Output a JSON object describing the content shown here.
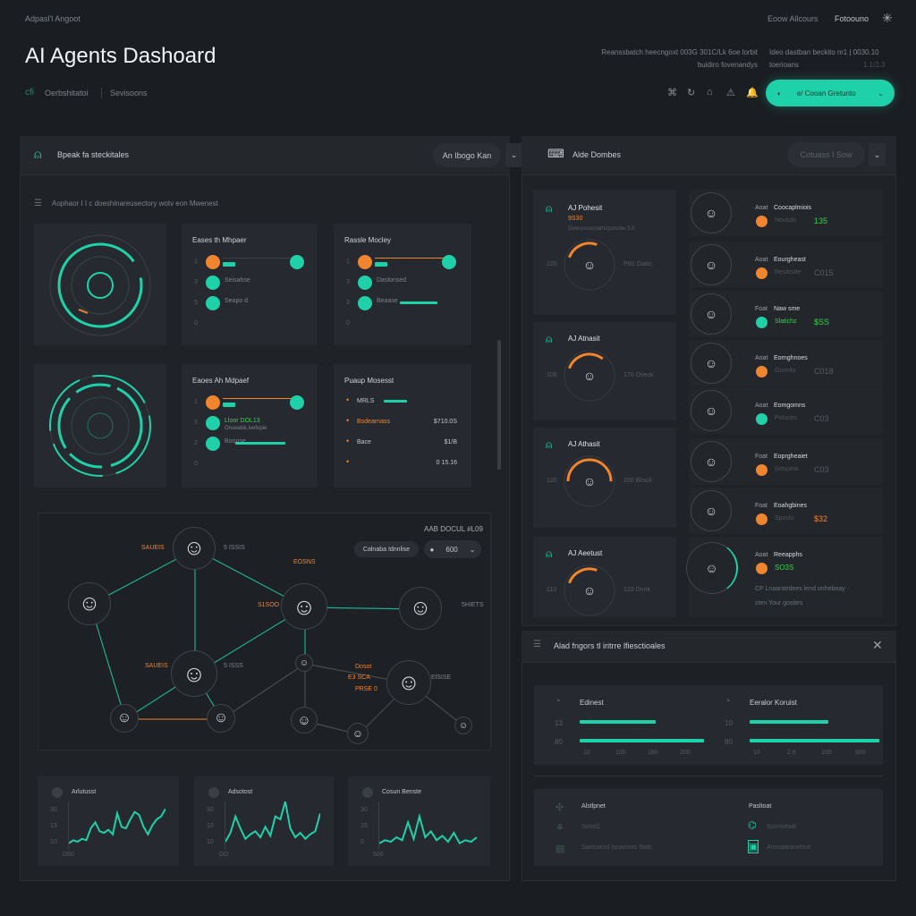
{
  "colors": {
    "accent": "#1fd1a8",
    "warning": "#f0852d",
    "background": "#1a1d22",
    "success": "#3ccf4e"
  },
  "topbar": {
    "breadcrumb": "Adpasl'l Angoot",
    "links": [
      "Eoow Allcours",
      "Fotoouno"
    ],
    "settings_icon": "asterisk-icon"
  },
  "header": {
    "title": "AI Agents Dashoard",
    "subtitle_left_1": "Reanssbatch heecngoxt 003G 301C/Lk 6oe lorbit",
    "subtitle_left_2": "buidiro fovenandys",
    "subtitle_right_1": "Ideo dastban beckito m1 | 0030.10",
    "subtitle_right_2": "toerioans",
    "subtitle_right_3": "1.1/2.3",
    "nav": [
      {
        "icon": "cfi",
        "label": "Oerbshitatoi"
      },
      {
        "label": "Sevisoons"
      }
    ],
    "tool_icons": [
      "network-icon",
      "refresh-icon",
      "home-icon",
      "alert-icon",
      "bell-icon"
    ],
    "primary_button": "e/ Cooan Gretunto"
  },
  "left_panel": {
    "title": "Bpeak fa steckitales",
    "button": "An Ibogo Kan",
    "caption": "Aophaor I I c doeshinareusectory wotv eon Mwenest",
    "cards": [
      {
        "title": "Eases th Mhpaer",
        "rows": [
          {
            "n": "1",
            "label": ""
          },
          {
            "n": "3",
            "label": "Seisahse"
          },
          {
            "n": "5",
            "label": "Seapo d"
          },
          {
            "n": "0",
            "label": ""
          }
        ]
      },
      {
        "title": "Rassle Mocley",
        "rows": [
          {
            "n": "1",
            "label": ""
          },
          {
            "n": "3",
            "label": "Daslonsed"
          },
          {
            "n": "3",
            "label": "Beaase"
          },
          {
            "n": "0",
            "label": ""
          }
        ]
      },
      {
        "title": "Eaoes Ah Mdpaef",
        "rows": [
          {
            "n": "1",
            "label": ""
          },
          {
            "n": "3",
            "label": "Lloor DOL13",
            "sub": "Onsealsk,ivefopie"
          },
          {
            "n": "2",
            "label": "Boouse"
          },
          {
            "n": "0",
            "label": ""
          }
        ]
      },
      {
        "title": "Puaup Mosesst",
        "rows": [
          {
            "label": "MRLS",
            "value": ""
          },
          {
            "label": "Bsdearnass",
            "value": "$710.0S"
          },
          {
            "label": "Bace",
            "value": "$1/B"
          },
          {
            "label": "",
            "value": "0 15.16"
          }
        ]
      }
    ],
    "network": {
      "title": "AAB DOCUL #L09",
      "filter_button": "Calnaba Idnnlise",
      "select_value": "600",
      "labels": {
        "n1_left": "SAUEIS",
        "n1_right": "5 ISSIS",
        "n2_top": "EOSNS",
        "n2_left": "S1SOO",
        "n3_right": "5HIETS",
        "n4_left": "SAUEIS",
        "n4_right": "5 ISSS",
        "n5_1": "Dosot",
        "n5_2": "E3 SCA",
        "n5_3": "PRSE 0",
        "n5_right": "ElSISE"
      }
    },
    "mini_charts": [
      {
        "title": "Arlutusst",
        "yticks": [
          "30",
          "13",
          "10"
        ],
        "xtick": "D50",
        "values": [
          2,
          4,
          3,
          5,
          4,
          12,
          16,
          10,
          9,
          11,
          8,
          22,
          13,
          12,
          18,
          23,
          21,
          13,
          8,
          14,
          18,
          20,
          25
        ]
      },
      {
        "title": "Adsotost",
        "yticks": [
          "30",
          "10",
          "10"
        ],
        "xtick": "DO",
        "values": [
          3,
          9,
          20,
          12,
          5,
          8,
          10,
          6,
          13,
          7,
          20,
          18,
          30,
          12,
          6,
          9,
          5,
          8,
          10,
          22
        ]
      },
      {
        "title": "Cosun Benste",
        "yticks": [
          "30",
          "15",
          "0"
        ],
        "xtick": "500",
        "values": [
          2,
          4,
          3,
          6,
          4,
          16,
          5,
          20,
          6,
          10,
          4,
          7,
          3,
          9,
          2,
          4,
          3,
          6
        ]
      }
    ]
  },
  "right_panel": {
    "title": "Alde Dombes",
    "button": "Cotuass I Sow",
    "agents": [
      {
        "name": "AJ Pohesit",
        "code": "9S30",
        "desc": "Deteunuoonarttsponobe 3.0",
        "left": "120",
        "right": "P80 Diatic",
        "arc": 0.25
      },
      {
        "name": "AJ Atnasit",
        "left": "100",
        "right": "170 Oveck",
        "arc": 0.3
      },
      {
        "name": "AJ Athasit",
        "left": "120",
        "right": "200 Blisck",
        "arc": 0.5
      },
      {
        "name": "AJ Aeetust",
        "left": "110",
        "right": "120 Dnnk",
        "arc": 0.25
      }
    ],
    "rows": [
      {
        "prefix": "Aoat",
        "name": "Coocaplmiois",
        "status": "Nousdo",
        "value": "135",
        "color": "orange"
      },
      {
        "prefix": "Aoat",
        "name": "Eourgheast",
        "status": "Resitrsite",
        "value": "C015",
        "color": "orange"
      },
      {
        "prefix": "Foat",
        "name": "Naw sme",
        "status": "Slatichz",
        "value": "$SS",
        "color": "teal"
      },
      {
        "prefix": "Aoat",
        "name": "Eornghnoes",
        "status": "Gorrrilo",
        "value": "C018",
        "color": "orange"
      },
      {
        "prefix": "Aoat",
        "name": "Eomgomns",
        "status": "Poluces",
        "value": "C03",
        "color": "teal"
      },
      {
        "prefix": "Foat",
        "name": "Eoprgheaiet",
        "status": "Sotuuna",
        "value": "C03",
        "color": "orange"
      },
      {
        "prefix": "Foat",
        "name": "Eoahgbines",
        "status": "Sposlu",
        "value": "$32",
        "color": "orange"
      },
      {
        "prefix": "Aoat",
        "name": "Reeapphs",
        "status": "",
        "value": "SO3S",
        "color": "orange",
        "note": "CP  Lnaaratrdees lend onhebeay",
        "note2": "sten Your gosites"
      }
    ]
  },
  "modal": {
    "title": "Alad fngors tl iritrre lfiesctioales",
    "close_icon": "close-icon",
    "stats": [
      {
        "title": "Edinest",
        "rows": [
          {
            "label": "13",
            "value": 58
          },
          {
            "label": "80",
            "value": 95
          }
        ],
        "xticks": [
          "10",
          "100",
          "180",
          "200"
        ]
      },
      {
        "title": "Eeralor Koruist",
        "rows": [
          {
            "label": "10",
            "value": 58
          },
          {
            "label": "80",
            "value": 95
          }
        ],
        "xticks": [
          "10",
          "2.6",
          "100",
          "500"
        ]
      }
    ],
    "bottom": {
      "left_title": "Alstlpnet",
      "left_items": [
        "Sotisl1",
        "Santoanol Isnaroots 6tatt."
      ],
      "right_title": "Pasltoat",
      "right_items": [
        "Sormivtadi",
        "Annsaaranetsot"
      ]
    }
  }
}
